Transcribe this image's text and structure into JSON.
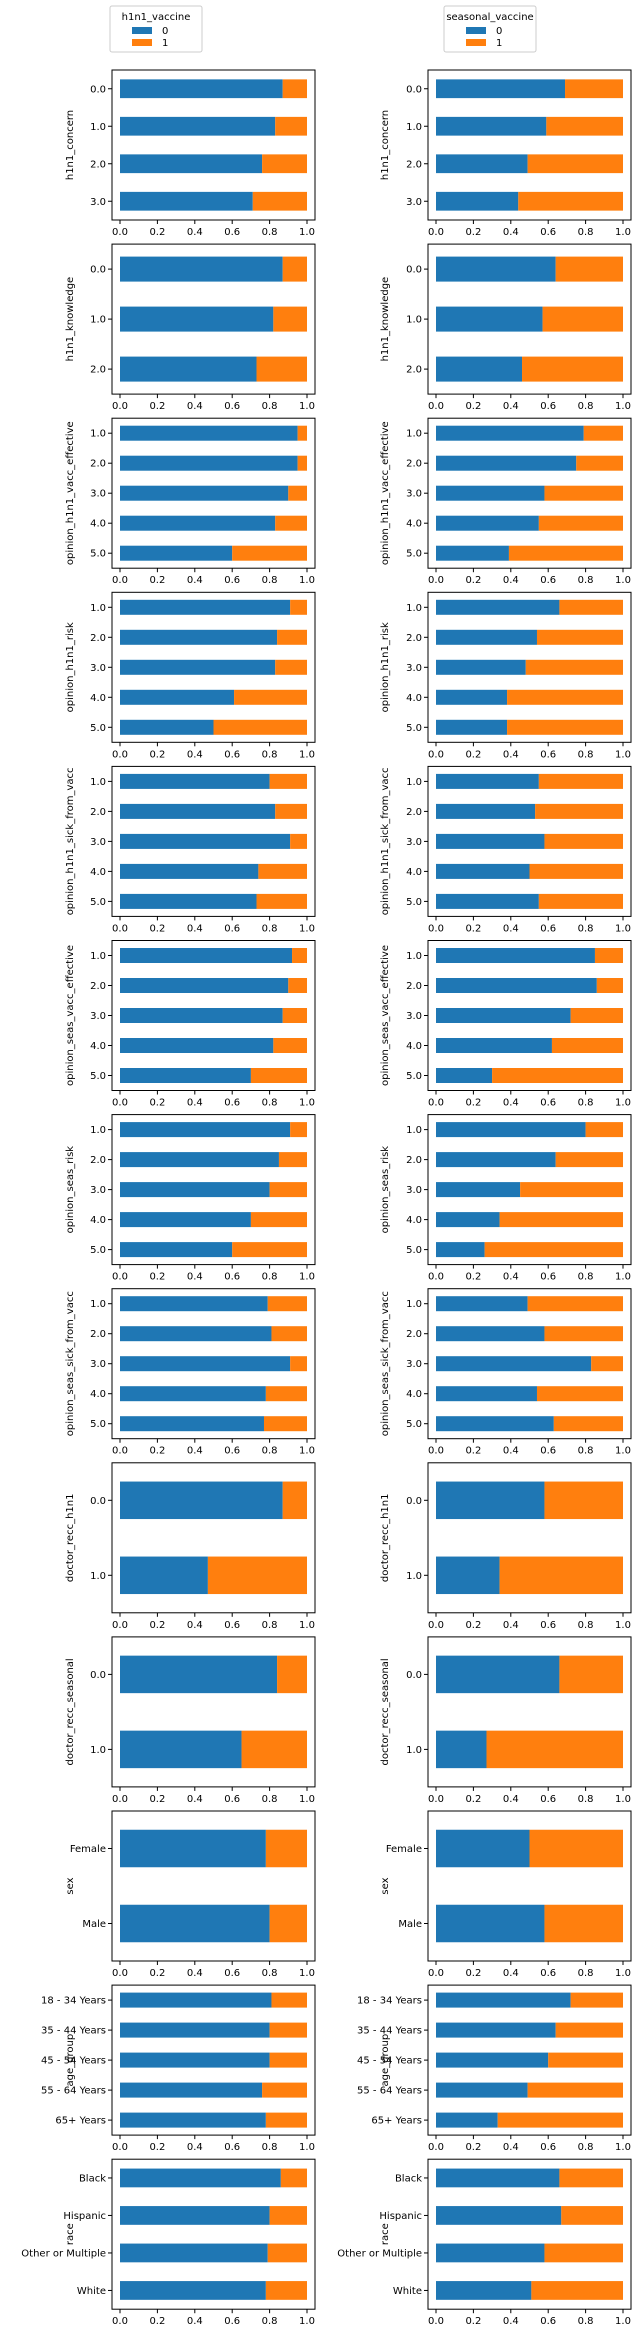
{
  "colors": {
    "0": "#1f77b4",
    "1": "#ff7f0e"
  },
  "legends": [
    {
      "title": "h1n1_vaccine",
      "entries": [
        "0",
        "1"
      ]
    },
    {
      "title": "seasonal_vaccine",
      "entries": [
        "0",
        "1"
      ]
    }
  ],
  "chart_data": [
    {
      "type": "bar",
      "orientation": "horizontal",
      "stacked": true,
      "column": "h1n1_vaccine",
      "ylabel": "h1n1_concern",
      "xlim": [
        0,
        1
      ],
      "xticks": [
        "0.0",
        "0.2",
        "0.4",
        "0.6",
        "0.8",
        "1.0"
      ],
      "categories": [
        "0.0",
        "1.0",
        "2.0",
        "3.0"
      ],
      "series": [
        {
          "name": "0",
          "values": [
            0.87,
            0.83,
            0.76,
            0.71
          ]
        },
        {
          "name": "1",
          "values": [
            0.13,
            0.17,
            0.24,
            0.29
          ]
        }
      ]
    },
    {
      "type": "bar",
      "orientation": "horizontal",
      "stacked": true,
      "column": "seasonal_vaccine",
      "ylabel": "h1n1_concern",
      "xlim": [
        0,
        1
      ],
      "xticks": [
        "0.0",
        "0.2",
        "0.4",
        "0.6",
        "0.8",
        "1.0"
      ],
      "categories": [
        "0.0",
        "1.0",
        "2.0",
        "3.0"
      ],
      "series": [
        {
          "name": "0",
          "values": [
            0.69,
            0.59,
            0.49,
            0.44
          ]
        },
        {
          "name": "1",
          "values": [
            0.31,
            0.41,
            0.51,
            0.56
          ]
        }
      ]
    },
    {
      "type": "bar",
      "orientation": "horizontal",
      "stacked": true,
      "column": "h1n1_vaccine",
      "ylabel": "h1n1_knowledge",
      "xlim": [
        0,
        1
      ],
      "xticks": [
        "0.0",
        "0.2",
        "0.4",
        "0.6",
        "0.8",
        "1.0"
      ],
      "categories": [
        "0.0",
        "1.0",
        "2.0"
      ],
      "series": [
        {
          "name": "0",
          "values": [
            0.87,
            0.82,
            0.73
          ]
        },
        {
          "name": "1",
          "values": [
            0.13,
            0.18,
            0.27
          ]
        }
      ]
    },
    {
      "type": "bar",
      "orientation": "horizontal",
      "stacked": true,
      "column": "seasonal_vaccine",
      "ylabel": "h1n1_knowledge",
      "xlim": [
        0,
        1
      ],
      "xticks": [
        "0.0",
        "0.2",
        "0.4",
        "0.6",
        "0.8",
        "1.0"
      ],
      "categories": [
        "0.0",
        "1.0",
        "2.0"
      ],
      "series": [
        {
          "name": "0",
          "values": [
            0.64,
            0.57,
            0.46
          ]
        },
        {
          "name": "1",
          "values": [
            0.36,
            0.43,
            0.54
          ]
        }
      ]
    },
    {
      "type": "bar",
      "orientation": "horizontal",
      "stacked": true,
      "column": "h1n1_vaccine",
      "ylabel": "opinion_h1n1_vacc_effective",
      "xlim": [
        0,
        1
      ],
      "xticks": [
        "0.0",
        "0.2",
        "0.4",
        "0.6",
        "0.8",
        "1.0"
      ],
      "categories": [
        "1.0",
        "2.0",
        "3.0",
        "4.0",
        "5.0"
      ],
      "series": [
        {
          "name": "0",
          "values": [
            0.95,
            0.95,
            0.9,
            0.83,
            0.6
          ]
        },
        {
          "name": "1",
          "values": [
            0.05,
            0.05,
            0.1,
            0.17,
            0.4
          ]
        }
      ]
    },
    {
      "type": "bar",
      "orientation": "horizontal",
      "stacked": true,
      "column": "seasonal_vaccine",
      "ylabel": "opinion_h1n1_vacc_effective",
      "xlim": [
        0,
        1
      ],
      "xticks": [
        "0.0",
        "0.2",
        "0.4",
        "0.6",
        "0.8",
        "1.0"
      ],
      "categories": [
        "1.0",
        "2.0",
        "3.0",
        "4.0",
        "5.0"
      ],
      "series": [
        {
          "name": "0",
          "values": [
            0.79,
            0.75,
            0.58,
            0.55,
            0.39
          ]
        },
        {
          "name": "1",
          "values": [
            0.21,
            0.25,
            0.42,
            0.45,
            0.61
          ]
        }
      ]
    },
    {
      "type": "bar",
      "orientation": "horizontal",
      "stacked": true,
      "column": "h1n1_vaccine",
      "ylabel": "opinion_h1n1_risk",
      "xlim": [
        0,
        1
      ],
      "xticks": [
        "0.0",
        "0.2",
        "0.4",
        "0.6",
        "0.8",
        "1.0"
      ],
      "categories": [
        "1.0",
        "2.0",
        "3.0",
        "4.0",
        "5.0"
      ],
      "series": [
        {
          "name": "0",
          "values": [
            0.91,
            0.84,
            0.83,
            0.61,
            0.5
          ]
        },
        {
          "name": "1",
          "values": [
            0.09,
            0.16,
            0.17,
            0.39,
            0.5
          ]
        }
      ]
    },
    {
      "type": "bar",
      "orientation": "horizontal",
      "stacked": true,
      "column": "seasonal_vaccine",
      "ylabel": "opinion_h1n1_risk",
      "xlim": [
        0,
        1
      ],
      "xticks": [
        "0.0",
        "0.2",
        "0.4",
        "0.6",
        "0.8",
        "1.0"
      ],
      "categories": [
        "1.0",
        "2.0",
        "3.0",
        "4.0",
        "5.0"
      ],
      "series": [
        {
          "name": "0",
          "values": [
            0.66,
            0.54,
            0.48,
            0.38,
            0.38
          ]
        },
        {
          "name": "1",
          "values": [
            0.34,
            0.46,
            0.52,
            0.62,
            0.62
          ]
        }
      ]
    },
    {
      "type": "bar",
      "orientation": "horizontal",
      "stacked": true,
      "column": "h1n1_vaccine",
      "ylabel": "opinion_h1n1_sick_from_vacc",
      "xlim": [
        0,
        1
      ],
      "xticks": [
        "0.0",
        "0.2",
        "0.4",
        "0.6",
        "0.8",
        "1.0"
      ],
      "categories": [
        "1.0",
        "2.0",
        "3.0",
        "4.0",
        "5.0"
      ],
      "series": [
        {
          "name": "0",
          "values": [
            0.8,
            0.83,
            0.91,
            0.74,
            0.73
          ]
        },
        {
          "name": "1",
          "values": [
            0.2,
            0.17,
            0.09,
            0.26,
            0.27
          ]
        }
      ]
    },
    {
      "type": "bar",
      "orientation": "horizontal",
      "stacked": true,
      "column": "seasonal_vaccine",
      "ylabel": "opinion_h1n1_sick_from_vacc",
      "xlim": [
        0,
        1
      ],
      "xticks": [
        "0.0",
        "0.2",
        "0.4",
        "0.6",
        "0.8",
        "1.0"
      ],
      "categories": [
        "1.0",
        "2.0",
        "3.0",
        "4.0",
        "5.0"
      ],
      "series": [
        {
          "name": "0",
          "values": [
            0.55,
            0.53,
            0.58,
            0.5,
            0.55
          ]
        },
        {
          "name": "1",
          "values": [
            0.45,
            0.47,
            0.42,
            0.5,
            0.45
          ]
        }
      ]
    },
    {
      "type": "bar",
      "orientation": "horizontal",
      "stacked": true,
      "column": "h1n1_vaccine",
      "ylabel": "opinion_seas_vacc_effective",
      "xlim": [
        0,
        1
      ],
      "xticks": [
        "0.0",
        "0.2",
        "0.4",
        "0.6",
        "0.8",
        "1.0"
      ],
      "categories": [
        "1.0",
        "2.0",
        "3.0",
        "4.0",
        "5.0"
      ],
      "series": [
        {
          "name": "0",
          "values": [
            0.92,
            0.9,
            0.87,
            0.82,
            0.7
          ]
        },
        {
          "name": "1",
          "values": [
            0.08,
            0.1,
            0.13,
            0.18,
            0.3
          ]
        }
      ]
    },
    {
      "type": "bar",
      "orientation": "horizontal",
      "stacked": true,
      "column": "seasonal_vaccine",
      "ylabel": "opinion_seas_vacc_effective",
      "xlim": [
        0,
        1
      ],
      "xticks": [
        "0.0",
        "0.2",
        "0.4",
        "0.6",
        "0.8",
        "1.0"
      ],
      "categories": [
        "1.0",
        "2.0",
        "3.0",
        "4.0",
        "5.0"
      ],
      "series": [
        {
          "name": "0",
          "values": [
            0.85,
            0.86,
            0.72,
            0.62,
            0.3
          ]
        },
        {
          "name": "1",
          "values": [
            0.15,
            0.14,
            0.28,
            0.38,
            0.7
          ]
        }
      ]
    },
    {
      "type": "bar",
      "orientation": "horizontal",
      "stacked": true,
      "column": "h1n1_vaccine",
      "ylabel": "opinion_seas_risk",
      "xlim": [
        0,
        1
      ],
      "xticks": [
        "0.0",
        "0.2",
        "0.4",
        "0.6",
        "0.8",
        "1.0"
      ],
      "categories": [
        "1.0",
        "2.0",
        "3.0",
        "4.0",
        "5.0"
      ],
      "series": [
        {
          "name": "0",
          "values": [
            0.91,
            0.85,
            0.8,
            0.7,
            0.6
          ]
        },
        {
          "name": "1",
          "values": [
            0.09,
            0.15,
            0.2,
            0.3,
            0.4
          ]
        }
      ]
    },
    {
      "type": "bar",
      "orientation": "horizontal",
      "stacked": true,
      "column": "seasonal_vaccine",
      "ylabel": "opinion_seas_risk",
      "xlim": [
        0,
        1
      ],
      "xticks": [
        "0.0",
        "0.2",
        "0.4",
        "0.6",
        "0.8",
        "1.0"
      ],
      "categories": [
        "1.0",
        "2.0",
        "3.0",
        "4.0",
        "5.0"
      ],
      "series": [
        {
          "name": "0",
          "values": [
            0.8,
            0.64,
            0.45,
            0.34,
            0.26
          ]
        },
        {
          "name": "1",
          "values": [
            0.2,
            0.36,
            0.55,
            0.66,
            0.74
          ]
        }
      ]
    },
    {
      "type": "bar",
      "orientation": "horizontal",
      "stacked": true,
      "column": "h1n1_vaccine",
      "ylabel": "opinion_seas_sick_from_vacc",
      "xlim": [
        0,
        1
      ],
      "xticks": [
        "0.0",
        "0.2",
        "0.4",
        "0.6",
        "0.8",
        "1.0"
      ],
      "categories": [
        "1.0",
        "2.0",
        "3.0",
        "4.0",
        "5.0"
      ],
      "series": [
        {
          "name": "0",
          "values": [
            0.79,
            0.81,
            0.91,
            0.78,
            0.77
          ]
        },
        {
          "name": "1",
          "values": [
            0.21,
            0.19,
            0.09,
            0.22,
            0.23
          ]
        }
      ]
    },
    {
      "type": "bar",
      "orientation": "horizontal",
      "stacked": true,
      "column": "seasonal_vaccine",
      "ylabel": "opinion_seas_sick_from_vacc",
      "xlim": [
        0,
        1
      ],
      "xticks": [
        "0.0",
        "0.2",
        "0.4",
        "0.6",
        "0.8",
        "1.0"
      ],
      "categories": [
        "1.0",
        "2.0",
        "3.0",
        "4.0",
        "5.0"
      ],
      "series": [
        {
          "name": "0",
          "values": [
            0.49,
            0.58,
            0.83,
            0.54,
            0.63
          ]
        },
        {
          "name": "1",
          "values": [
            0.51,
            0.42,
            0.17,
            0.46,
            0.37
          ]
        }
      ]
    },
    {
      "type": "bar",
      "orientation": "horizontal",
      "stacked": true,
      "column": "h1n1_vaccine",
      "ylabel": "doctor_recc_h1n1",
      "xlim": [
        0,
        1
      ],
      "xticks": [
        "0.0",
        "0.2",
        "0.4",
        "0.6",
        "0.8",
        "1.0"
      ],
      "categories": [
        "0.0",
        "1.0"
      ],
      "series": [
        {
          "name": "0",
          "values": [
            0.87,
            0.47
          ]
        },
        {
          "name": "1",
          "values": [
            0.13,
            0.53
          ]
        }
      ]
    },
    {
      "type": "bar",
      "orientation": "horizontal",
      "stacked": true,
      "column": "seasonal_vaccine",
      "ylabel": "doctor_recc_h1n1",
      "xlim": [
        0,
        1
      ],
      "xticks": [
        "0.0",
        "0.2",
        "0.4",
        "0.6",
        "0.8",
        "1.0"
      ],
      "categories": [
        "0.0",
        "1.0"
      ],
      "series": [
        {
          "name": "0",
          "values": [
            0.58,
            0.34
          ]
        },
        {
          "name": "1",
          "values": [
            0.42,
            0.66
          ]
        }
      ]
    },
    {
      "type": "bar",
      "orientation": "horizontal",
      "stacked": true,
      "column": "h1n1_vaccine",
      "ylabel": "doctor_recc_seasonal",
      "xlim": [
        0,
        1
      ],
      "xticks": [
        "0.0",
        "0.2",
        "0.4",
        "0.6",
        "0.8",
        "1.0"
      ],
      "categories": [
        "0.0",
        "1.0"
      ],
      "series": [
        {
          "name": "0",
          "values": [
            0.84,
            0.65
          ]
        },
        {
          "name": "1",
          "values": [
            0.16,
            0.35
          ]
        }
      ]
    },
    {
      "type": "bar",
      "orientation": "horizontal",
      "stacked": true,
      "column": "seasonal_vaccine",
      "ylabel": "doctor_recc_seasonal",
      "xlim": [
        0,
        1
      ],
      "xticks": [
        "0.0",
        "0.2",
        "0.4",
        "0.6",
        "0.8",
        "1.0"
      ],
      "categories": [
        "0.0",
        "1.0"
      ],
      "series": [
        {
          "name": "0",
          "values": [
            0.66,
            0.27
          ]
        },
        {
          "name": "1",
          "values": [
            0.34,
            0.73
          ]
        }
      ]
    },
    {
      "type": "bar",
      "orientation": "horizontal",
      "stacked": true,
      "column": "h1n1_vaccine",
      "ylabel": "sex",
      "xlim": [
        0,
        1
      ],
      "xticks": [
        "0.0",
        "0.2",
        "0.4",
        "0.6",
        "0.8",
        "1.0"
      ],
      "categories": [
        "Female",
        "Male"
      ],
      "series": [
        {
          "name": "0",
          "values": [
            0.78,
            0.8
          ]
        },
        {
          "name": "1",
          "values": [
            0.22,
            0.2
          ]
        }
      ]
    },
    {
      "type": "bar",
      "orientation": "horizontal",
      "stacked": true,
      "column": "seasonal_vaccine",
      "ylabel": "sex",
      "xlim": [
        0,
        1
      ],
      "xticks": [
        "0.0",
        "0.2",
        "0.4",
        "0.6",
        "0.8",
        "1.0"
      ],
      "categories": [
        "Female",
        "Male"
      ],
      "series": [
        {
          "name": "0",
          "values": [
            0.5,
            0.58
          ]
        },
        {
          "name": "1",
          "values": [
            0.5,
            0.42
          ]
        }
      ]
    },
    {
      "type": "bar",
      "orientation": "horizontal",
      "stacked": true,
      "column": "h1n1_vaccine",
      "ylabel": "age_group",
      "xlim": [
        0,
        1
      ],
      "xticks": [
        "0.0",
        "0.2",
        "0.4",
        "0.6",
        "0.8",
        "1.0"
      ],
      "categories": [
        "18 - 34 Years",
        "35 - 44 Years",
        "45 - 54 Years",
        "55 - 64 Years",
        "65+ Years"
      ],
      "series": [
        {
          "name": "0",
          "values": [
            0.81,
            0.8,
            0.8,
            0.76,
            0.78
          ]
        },
        {
          "name": "1",
          "values": [
            0.19,
            0.2,
            0.2,
            0.24,
            0.22
          ]
        }
      ]
    },
    {
      "type": "bar",
      "orientation": "horizontal",
      "stacked": true,
      "column": "seasonal_vaccine",
      "ylabel": "age_group",
      "xlim": [
        0,
        1
      ],
      "xticks": [
        "0.0",
        "0.2",
        "0.4",
        "0.6",
        "0.8",
        "1.0"
      ],
      "categories": [
        "18 - 34 Years",
        "35 - 44 Years",
        "45 - 54 Years",
        "55 - 64 Years",
        "65+ Years"
      ],
      "series": [
        {
          "name": "0",
          "values": [
            0.72,
            0.64,
            0.6,
            0.49,
            0.33
          ]
        },
        {
          "name": "1",
          "values": [
            0.28,
            0.36,
            0.4,
            0.51,
            0.67
          ]
        }
      ]
    },
    {
      "type": "bar",
      "orientation": "horizontal",
      "stacked": true,
      "column": "h1n1_vaccine",
      "ylabel": "race",
      "xlim": [
        0,
        1
      ],
      "xticks": [
        "0.0",
        "0.2",
        "0.4",
        "0.6",
        "0.8",
        "1.0"
      ],
      "categories": [
        "Black",
        "Hispanic",
        "Other or Multiple",
        "White"
      ],
      "series": [
        {
          "name": "0",
          "values": [
            0.86,
            0.8,
            0.79,
            0.78
          ]
        },
        {
          "name": "1",
          "values": [
            0.14,
            0.2,
            0.21,
            0.22
          ]
        }
      ]
    },
    {
      "type": "bar",
      "orientation": "horizontal",
      "stacked": true,
      "column": "seasonal_vaccine",
      "ylabel": "race",
      "xlim": [
        0,
        1
      ],
      "xticks": [
        "0.0",
        "0.2",
        "0.4",
        "0.6",
        "0.8",
        "1.0"
      ],
      "categories": [
        "Black",
        "Hispanic",
        "Other or Multiple",
        "White"
      ],
      "series": [
        {
          "name": "0",
          "values": [
            0.66,
            0.67,
            0.58,
            0.51
          ]
        },
        {
          "name": "1",
          "values": [
            0.34,
            0.33,
            0.42,
            0.49
          ]
        }
      ]
    }
  ]
}
